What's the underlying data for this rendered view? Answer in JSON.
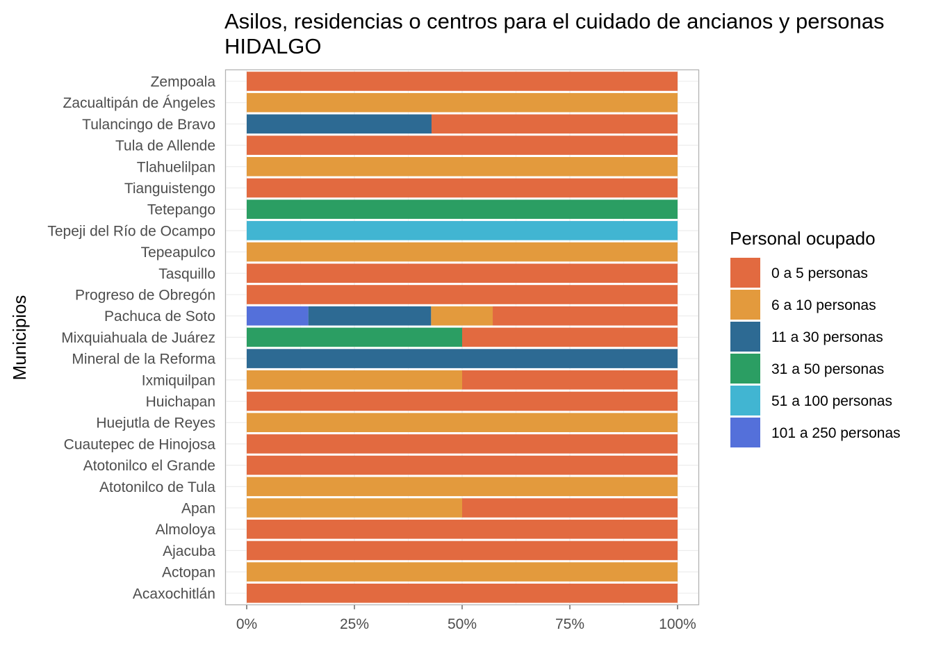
{
  "chart_data": {
    "type": "bar",
    "orientation": "horizontal",
    "stacked": "percent",
    "title_line1": "Asilos, residencias o centros para el cuidado de ancianos y personas",
    "title_line2": "HIDALGO",
    "xlabel": "",
    "ylabel": "Municipios",
    "xlim": [
      0,
      100
    ],
    "x_ticks": [
      "0%",
      "25%",
      "50%",
      "75%",
      "100%"
    ],
    "grid": true,
    "legend_title": "Personal ocupado",
    "legend_position": "right",
    "categories": [
      "Zempoala",
      "Zacualtipán de Ángeles",
      "Tulancingo de Bravo",
      "Tula de Allende",
      "Tlahuelilpan",
      "Tianguistengo",
      "Tetepango",
      "Tepeji del Río de Ocampo",
      "Tepeapulco",
      "Tasquillo",
      "Progreso de Obregón",
      "Pachuca de Soto",
      "Mixquiahuala de Juárez",
      "Mineral de la Reforma",
      "Ixmiquilpan",
      "Huichapan",
      "Huejutla de Reyes",
      "Cuautepec de Hinojosa",
      "Atotonilco el Grande",
      "Atotonilco de Tula",
      "Apan",
      "Almoloya",
      "Ajacuba",
      "Actopan",
      "Acaxochitlán"
    ],
    "stack_order": [
      "101 a 250 personas",
      "11 a 30 personas",
      "31 a 50 personas",
      "51 a 100 personas",
      "6 a 10 personas",
      "0 a 5 personas"
    ],
    "series": [
      {
        "name": "0 a 5 personas",
        "color": "#E26A40",
        "values": [
          100,
          0,
          57.1,
          100,
          0,
          100,
          0,
          0,
          0,
          100,
          100,
          42.9,
          50,
          0,
          50,
          100,
          0,
          100,
          100,
          0,
          50,
          100,
          100,
          0,
          100
        ]
      },
      {
        "name": "6 a 10 personas",
        "color": "#E39A3D",
        "values": [
          0,
          100,
          0,
          0,
          100,
          0,
          0,
          0,
          100,
          0,
          0,
          14.3,
          0,
          0,
          50,
          0,
          100,
          0,
          0,
          100,
          50,
          0,
          0,
          100,
          0
        ]
      },
      {
        "name": "11 a 30 personas",
        "color": "#2D6A93",
        "values": [
          0,
          0,
          42.9,
          0,
          0,
          0,
          0,
          0,
          0,
          0,
          0,
          28.5,
          0,
          100,
          0,
          0,
          0,
          0,
          0,
          0,
          0,
          0,
          0,
          0,
          0
        ]
      },
      {
        "name": "31 a 50 personas",
        "color": "#2B9E63",
        "values": [
          0,
          0,
          0,
          0,
          0,
          0,
          100,
          0,
          0,
          0,
          0,
          0,
          50,
          0,
          0,
          0,
          0,
          0,
          0,
          0,
          0,
          0,
          0,
          0,
          0
        ]
      },
      {
        "name": "51 a 100 personas",
        "color": "#41B5D2",
        "values": [
          0,
          0,
          0,
          0,
          0,
          0,
          0,
          100,
          0,
          0,
          0,
          0,
          0,
          0,
          0,
          0,
          0,
          0,
          0,
          0,
          0,
          0,
          0,
          0,
          0
        ]
      },
      {
        "name": "101 a 250 personas",
        "color": "#5470DA",
        "values": [
          0,
          0,
          0,
          0,
          0,
          0,
          0,
          0,
          0,
          0,
          0,
          14.3,
          0,
          0,
          0,
          0,
          0,
          0,
          0,
          0,
          0,
          0,
          0,
          0,
          0
        ]
      }
    ]
  }
}
